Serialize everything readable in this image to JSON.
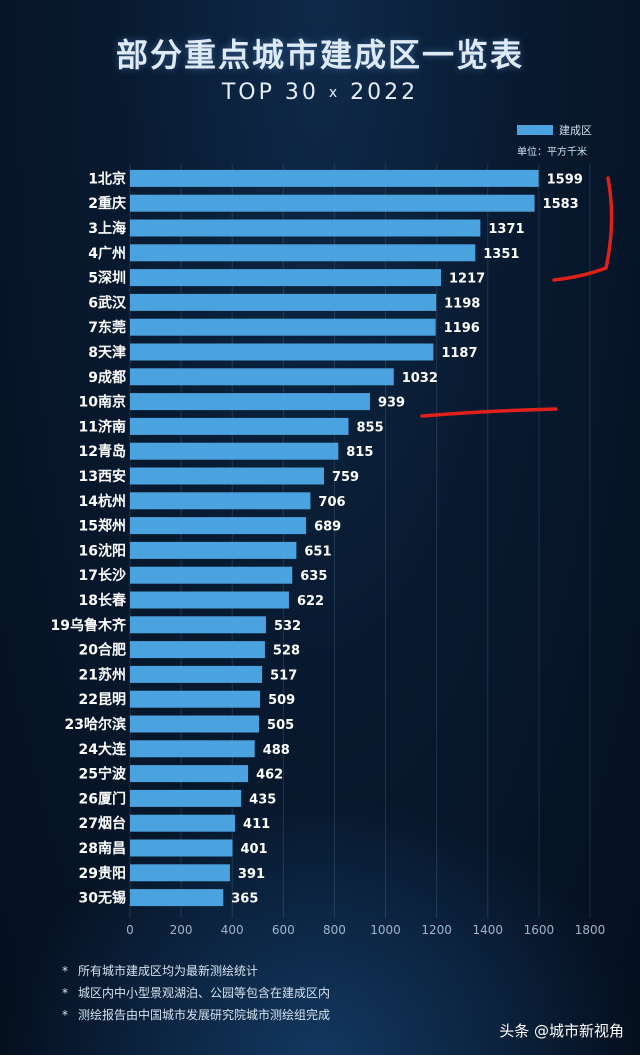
{
  "title": "部分重点城市建成区一览表",
  "subtitle_parts": [
    "TOP 30",
    "x",
    "2022"
  ],
  "legend": {
    "label": "建成区",
    "unit": "单位：平方千米",
    "color": "#4aa3de"
  },
  "notes": [
    "所有城市建成区均为最新测绘统计",
    "城区内中小型景观湖泊、公园等包含在建成区内",
    "测绘报告由中国城市发展研究院城市测绘组完成"
  ],
  "watermark": "头条 @城市新视角",
  "chart_data": {
    "type": "bar",
    "orientation": "horizontal",
    "categories": [
      "1北京",
      "2重庆",
      "3上海",
      "4广州",
      "5深圳",
      "6武汉",
      "7东莞",
      "8天津",
      "9成都",
      "10南京",
      "11济南",
      "12青岛",
      "13西安",
      "14杭州",
      "15郑州",
      "16沈阳",
      "17长沙",
      "18长春",
      "19乌鲁木齐",
      "20合肥",
      "21苏州",
      "22昆明",
      "23哈尔滨",
      "24大连",
      "25宁波",
      "26厦门",
      "27烟台",
      "28南昌",
      "29贵阳",
      "30无锡"
    ],
    "series": [
      {
        "name": "建成区",
        "values": [
          1599,
          1583,
          1371,
          1351,
          1217,
          1198,
          1196,
          1187,
          1032,
          939,
          855,
          815,
          759,
          706,
          689,
          651,
          635,
          622,
          532,
          528,
          517,
          509,
          505,
          488,
          462,
          435,
          411,
          401,
          391,
          365
        ]
      }
    ],
    "xlim": [
      0,
      1800
    ],
    "xticks": [
      0,
      200,
      400,
      600,
      800,
      1000,
      1200,
      1400,
      1600,
      1800
    ],
    "grid": true,
    "legend_position": "top-right",
    "bar_color": "#4aa3de",
    "annotations": "red hand-drawn marks near 1-5 and 10南京"
  }
}
